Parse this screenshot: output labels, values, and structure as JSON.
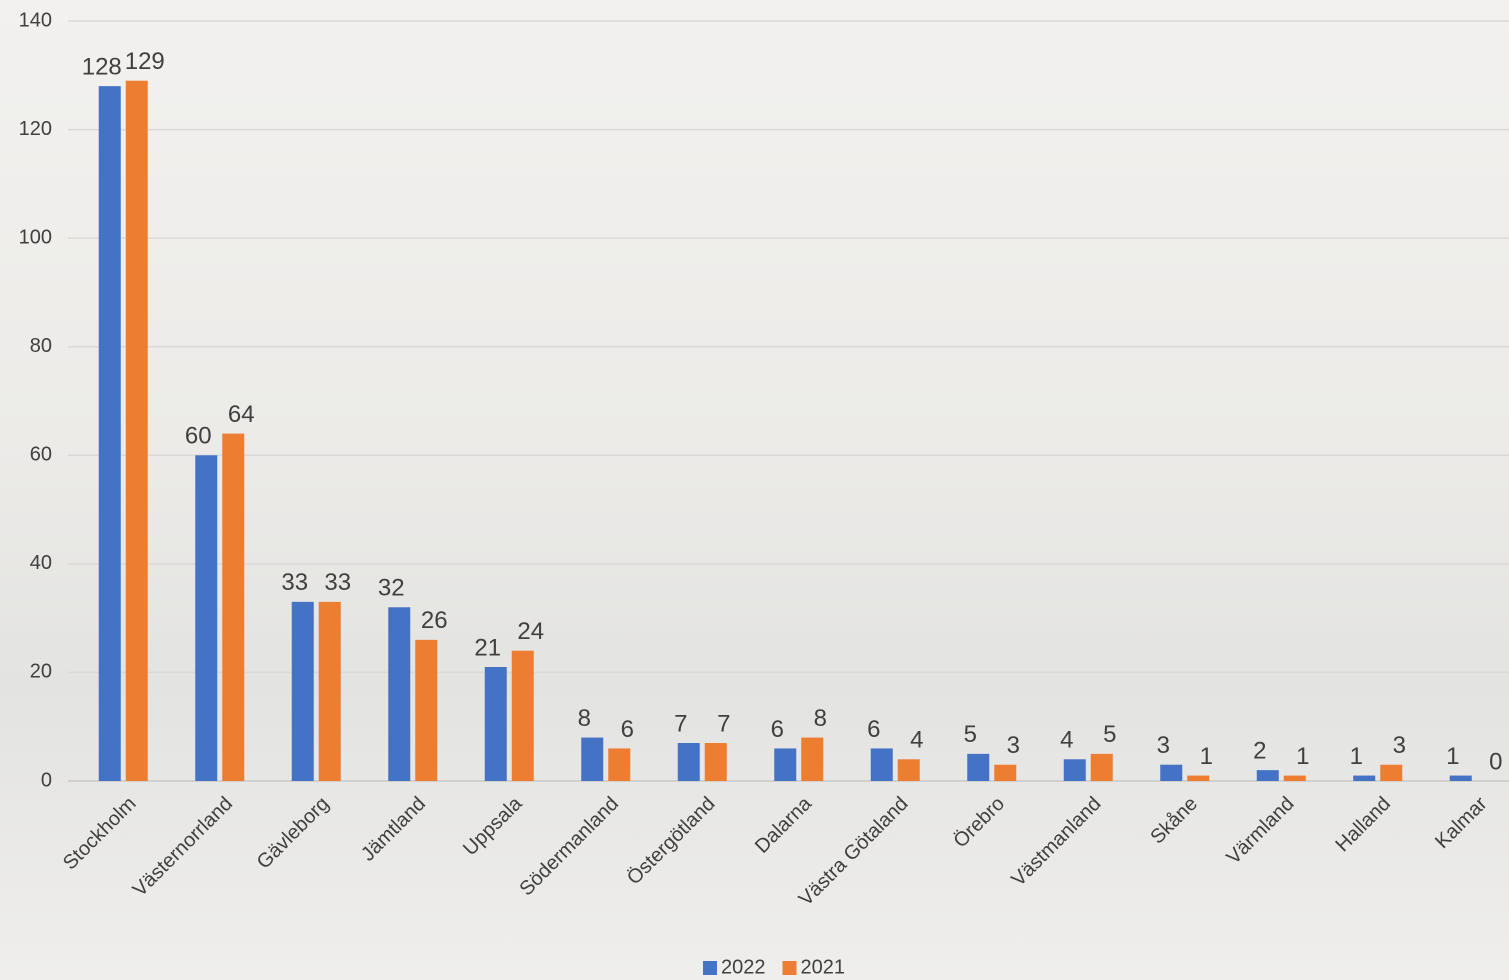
{
  "chart_data": {
    "type": "bar",
    "categories": [
      "Stockholm",
      "Västernorrland",
      "Gävleborg",
      "Jämtland",
      "Uppsala",
      "Södermanland",
      "Östergötland",
      "Dalarna",
      "Västra Götaland",
      "Örebro",
      "Västmanland",
      "Skåne",
      "Värmland",
      "Halland",
      "Kalmar"
    ],
    "series": [
      {
        "name": "2022",
        "color": "#4472c4",
        "values": [
          128,
          60,
          33,
          32,
          21,
          8,
          7,
          6,
          6,
          5,
          4,
          3,
          2,
          1,
          1
        ]
      },
      {
        "name": "2021",
        "color": "#ed7d31",
        "values": [
          129,
          64,
          33,
          26,
          24,
          6,
          7,
          8,
          4,
          3,
          5,
          1,
          1,
          3,
          0
        ]
      }
    ],
    "ylim": [
      0,
      140
    ],
    "yticks": [
      0,
      20,
      40,
      60,
      80,
      100,
      120,
      140
    ],
    "grid": true,
    "legend": "bottom"
  }
}
